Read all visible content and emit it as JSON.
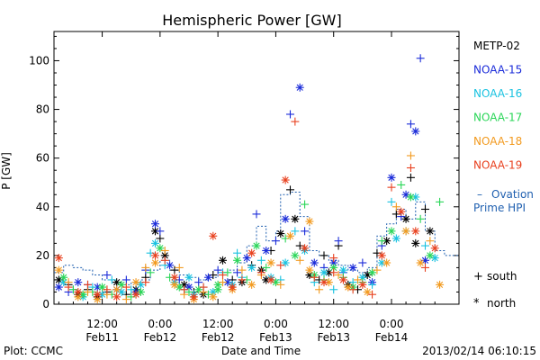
{
  "chart_data": {
    "type": "scatter",
    "title": "Hemispheric Power [GW]",
    "xlabel": "Date and Time",
    "ylabel": "P [GW]",
    "ylim": [
      0,
      112
    ],
    "yticks": [
      0,
      20,
      40,
      60,
      80,
      100
    ],
    "x_unit": "hours since 2013-02-11 00:00 UT",
    "xlim": [
      2,
      86
    ],
    "xticks": [
      {
        "x": 12,
        "line1": "12:00",
        "line2": "Feb11"
      },
      {
        "x": 24,
        "line1": "0:00",
        "line2": "Feb12"
      },
      {
        "x": 36,
        "line1": "12:00",
        "line2": "Feb12"
      },
      {
        "x": 48,
        "line1": "0:00",
        "line2": "Feb13"
      },
      {
        "x": 60,
        "line1": "12:00",
        "line2": "Feb13"
      },
      {
        "x": 72,
        "line1": "0:00",
        "line2": "Feb14"
      }
    ],
    "legend_placement": "right",
    "series": [
      {
        "name": "METP-02",
        "color": "#000000",
        "points": [
          [
            3,
            10
          ],
          [
            5,
            8
          ],
          [
            7,
            4
          ],
          [
            9,
            6
          ],
          [
            11,
            3
          ],
          [
            13,
            5
          ],
          [
            15,
            9
          ],
          [
            17,
            4
          ],
          [
            19,
            6
          ],
          [
            21,
            11
          ],
          [
            23,
            30
          ],
          [
            24,
            27
          ],
          [
            25,
            20
          ],
          [
            27,
            14
          ],
          [
            29,
            8
          ],
          [
            31,
            5
          ],
          [
            33,
            4
          ],
          [
            35,
            12
          ],
          [
            37,
            18
          ],
          [
            39,
            10
          ],
          [
            41,
            9
          ],
          [
            43,
            16
          ],
          [
            45,
            14
          ],
          [
            47,
            22
          ],
          [
            49,
            29
          ],
          [
            51,
            47
          ],
          [
            52,
            35
          ],
          [
            53,
            24
          ],
          [
            55,
            12
          ],
          [
            57,
            10
          ],
          [
            59,
            13
          ],
          [
            61,
            24
          ],
          [
            63,
            8
          ],
          [
            65,
            6
          ],
          [
            67,
            12
          ],
          [
            69,
            21
          ],
          [
            71,
            26
          ],
          [
            73,
            37
          ],
          [
            75,
            35
          ],
          [
            76,
            52
          ],
          [
            77,
            25
          ],
          [
            79,
            39
          ],
          [
            80,
            30
          ],
          [
            58,
            20
          ],
          [
            46,
            10
          ]
        ]
      },
      {
        "name": "NOAA-15",
        "color": "#1a2bd9",
        "points": [
          [
            3,
            7
          ],
          [
            5,
            5
          ],
          [
            7,
            9
          ],
          [
            9,
            8
          ],
          [
            11,
            7
          ],
          [
            13,
            12
          ],
          [
            15,
            6
          ],
          [
            17,
            10
          ],
          [
            19,
            5
          ],
          [
            21,
            14
          ],
          [
            23,
            33
          ],
          [
            24,
            30
          ],
          [
            26,
            16
          ],
          [
            28,
            10
          ],
          [
            30,
            7
          ],
          [
            32,
            9
          ],
          [
            34,
            11
          ],
          [
            36,
            14
          ],
          [
            38,
            9
          ],
          [
            40,
            13
          ],
          [
            42,
            19
          ],
          [
            44,
            37
          ],
          [
            46,
            22
          ],
          [
            48,
            26
          ],
          [
            50,
            35
          ],
          [
            51,
            78
          ],
          [
            53,
            89
          ],
          [
            54,
            30
          ],
          [
            56,
            17
          ],
          [
            58,
            15
          ],
          [
            60,
            17
          ],
          [
            62,
            13
          ],
          [
            64,
            15
          ],
          [
            66,
            17
          ],
          [
            68,
            9
          ],
          [
            70,
            24
          ],
          [
            72,
            52
          ],
          [
            74,
            36
          ],
          [
            75,
            45
          ],
          [
            76,
            74
          ],
          [
            77,
            71
          ],
          [
            78,
            101
          ],
          [
            79,
            18
          ],
          [
            61,
            26
          ]
        ]
      },
      {
        "name": "NOAA-16",
        "color": "#19c2e0",
        "points": [
          [
            4,
            9
          ],
          [
            6,
            6
          ],
          [
            8,
            3
          ],
          [
            10,
            7
          ],
          [
            12,
            4
          ],
          [
            14,
            10
          ],
          [
            16,
            5
          ],
          [
            18,
            6
          ],
          [
            20,
            8
          ],
          [
            22,
            21
          ],
          [
            23,
            25
          ],
          [
            25,
            16
          ],
          [
            27,
            9
          ],
          [
            29,
            6
          ],
          [
            31,
            4
          ],
          [
            33,
            7
          ],
          [
            35,
            5
          ],
          [
            37,
            13
          ],
          [
            39,
            8
          ],
          [
            41,
            11
          ],
          [
            43,
            15
          ],
          [
            45,
            18
          ],
          [
            47,
            11
          ],
          [
            49,
            10
          ],
          [
            50,
            17
          ],
          [
            52,
            30
          ],
          [
            54,
            22
          ],
          [
            56,
            9
          ],
          [
            58,
            13
          ],
          [
            60,
            6
          ],
          [
            62,
            14
          ],
          [
            64,
            9
          ],
          [
            66,
            11
          ],
          [
            68,
            8
          ],
          [
            70,
            17
          ],
          [
            72,
            42
          ],
          [
            73,
            27
          ],
          [
            75,
            30
          ],
          [
            77,
            44
          ],
          [
            79,
            24
          ],
          [
            81,
            19
          ],
          [
            40,
            21
          ],
          [
            30,
            11
          ]
        ]
      },
      {
        "name": "NOAA-17",
        "color": "#29d657",
        "points": [
          [
            4,
            11
          ],
          [
            6,
            6
          ],
          [
            8,
            4
          ],
          [
            10,
            5
          ],
          [
            12,
            7
          ],
          [
            14,
            4
          ],
          [
            16,
            8
          ],
          [
            18,
            3
          ],
          [
            20,
            5
          ],
          [
            22,
            13
          ],
          [
            24,
            23
          ],
          [
            26,
            11
          ],
          [
            28,
            7
          ],
          [
            30,
            5
          ],
          [
            32,
            6
          ],
          [
            34,
            4
          ],
          [
            36,
            8
          ],
          [
            38,
            13
          ],
          [
            40,
            18
          ],
          [
            42,
            10
          ],
          [
            44,
            24
          ],
          [
            46,
            15
          ],
          [
            48,
            9
          ],
          [
            50,
            27
          ],
          [
            52,
            20
          ],
          [
            54,
            41
          ],
          [
            56,
            12
          ],
          [
            58,
            10
          ],
          [
            60,
            15
          ],
          [
            62,
            11
          ],
          [
            64,
            7
          ],
          [
            66,
            9
          ],
          [
            68,
            13
          ],
          [
            70,
            26
          ],
          [
            72,
            30
          ],
          [
            74,
            49
          ],
          [
            76,
            44
          ],
          [
            78,
            35
          ],
          [
            80,
            20
          ],
          [
            82,
            42
          ],
          [
            36,
            6
          ]
        ]
      },
      {
        "name": "NOAA-18",
        "color": "#f29a1f",
        "points": [
          [
            3,
            14
          ],
          [
            5,
            9
          ],
          [
            7,
            3
          ],
          [
            9,
            5
          ],
          [
            11,
            2
          ],
          [
            13,
            4
          ],
          [
            15,
            6
          ],
          [
            17,
            2
          ],
          [
            19,
            9
          ],
          [
            21,
            15
          ],
          [
            23,
            17
          ],
          [
            25,
            22
          ],
          [
            27,
            8
          ],
          [
            29,
            4
          ],
          [
            31,
            2
          ],
          [
            33,
            5
          ],
          [
            35,
            3
          ],
          [
            37,
            9
          ],
          [
            39,
            6
          ],
          [
            41,
            14
          ],
          [
            43,
            8
          ],
          [
            45,
            12
          ],
          [
            47,
            17
          ],
          [
            49,
            8
          ],
          [
            51,
            28
          ],
          [
            53,
            18
          ],
          [
            55,
            14
          ],
          [
            57,
            6
          ],
          [
            59,
            9
          ],
          [
            61,
            12
          ],
          [
            63,
            7
          ],
          [
            65,
            10
          ],
          [
            67,
            5
          ],
          [
            69,
            14
          ],
          [
            71,
            17
          ],
          [
            73,
            40
          ],
          [
            75,
            30
          ],
          [
            76,
            61
          ],
          [
            78,
            17
          ],
          [
            80,
            26
          ],
          [
            82,
            8
          ],
          [
            28,
            15
          ],
          [
            55,
            34
          ]
        ]
      },
      {
        "name": "NOAA-19",
        "color": "#e8401e",
        "points": [
          [
            3,
            19
          ],
          [
            5,
            7
          ],
          [
            7,
            5
          ],
          [
            9,
            8
          ],
          [
            11,
            4
          ],
          [
            13,
            6
          ],
          [
            15,
            3
          ],
          [
            17,
            7
          ],
          [
            19,
            4
          ],
          [
            21,
            9
          ],
          [
            23,
            20
          ],
          [
            25,
            18
          ],
          [
            27,
            11
          ],
          [
            29,
            6
          ],
          [
            31,
            3
          ],
          [
            33,
            7
          ],
          [
            35,
            28
          ],
          [
            37,
            12
          ],
          [
            39,
            7
          ],
          [
            41,
            10
          ],
          [
            43,
            21
          ],
          [
            45,
            13
          ],
          [
            47,
            10
          ],
          [
            49,
            16
          ],
          [
            50,
            51
          ],
          [
            52,
            75
          ],
          [
            54,
            23
          ],
          [
            56,
            11
          ],
          [
            58,
            9
          ],
          [
            60,
            13
          ],
          [
            62,
            10
          ],
          [
            64,
            6
          ],
          [
            66,
            8
          ],
          [
            68,
            4
          ],
          [
            70,
            20
          ],
          [
            72,
            48
          ],
          [
            74,
            38
          ],
          [
            76,
            56
          ],
          [
            77,
            30
          ],
          [
            79,
            15
          ],
          [
            81,
            23
          ],
          [
            60,
            19
          ]
        ]
      }
    ],
    "ovation": {
      "name": "Ovation Prime HPI",
      "color": "#2060b0",
      "steps": [
        [
          2,
          13
        ],
        [
          4,
          16
        ],
        [
          6,
          15
        ],
        [
          8,
          14
        ],
        [
          10,
          12
        ],
        [
          12,
          10
        ],
        [
          14,
          9
        ],
        [
          16,
          8
        ],
        [
          18,
          9
        ],
        [
          20,
          10
        ],
        [
          22,
          14
        ],
        [
          24,
          18
        ],
        [
          26,
          14
        ],
        [
          28,
          12
        ],
        [
          30,
          11
        ],
        [
          32,
          10
        ],
        [
          34,
          11
        ],
        [
          36,
          13
        ],
        [
          38,
          14
        ],
        [
          40,
          17
        ],
        [
          42,
          24
        ],
        [
          44,
          32
        ],
        [
          46,
          26
        ],
        [
          48,
          30
        ],
        [
          49,
          45
        ],
        [
          51,
          46
        ],
        [
          53,
          36
        ],
        [
          55,
          22
        ],
        [
          57,
          20
        ],
        [
          59,
          18
        ],
        [
          61,
          16
        ],
        [
          63,
          14
        ],
        [
          65,
          13
        ],
        [
          67,
          15
        ],
        [
          69,
          28
        ],
        [
          71,
          33
        ],
        [
          73,
          39
        ],
        [
          75,
          35
        ],
        [
          77,
          42
        ],
        [
          79,
          30
        ],
        [
          81,
          22
        ],
        [
          83,
          20
        ],
        [
          86,
          20
        ]
      ]
    },
    "marker_legend": [
      {
        "symbol": "+",
        "label": "south"
      },
      {
        "symbol": "*",
        "label": "north"
      }
    ],
    "footer_left": "Plot: CCMC",
    "footer_right": "2013/02/14 06:10:15",
    "legend_dash": "–"
  }
}
